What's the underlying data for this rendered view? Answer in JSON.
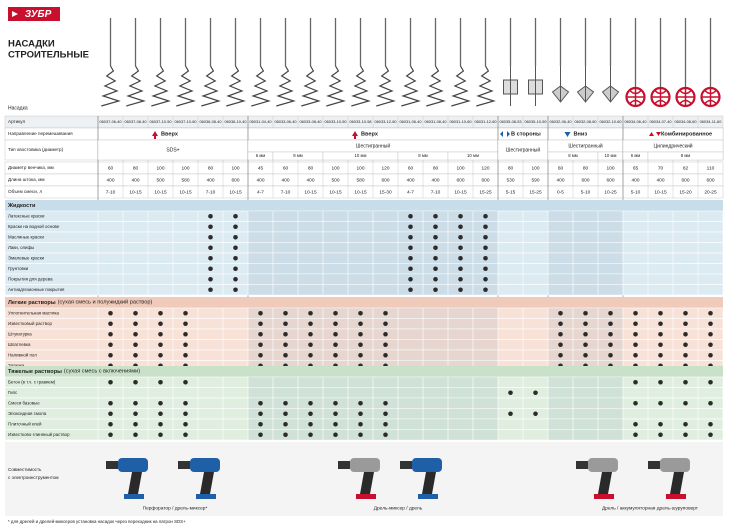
{
  "header": {
    "logo": "ЗУБР",
    "title": [
      "НАСАДКИ",
      "СТРОИТЕЛЬНЫЕ"
    ]
  },
  "labels": {
    "nozzle": "Насадка",
    "article": "Артикул",
    "direction": "Направление перемешивания",
    "shank": "Тип хвостовика (диаметр)",
    "diameter": "Диаметр венчика, мм",
    "length": "Длина штока, мм",
    "volume": "Объем смеси, л"
  },
  "groups": [
    {
      "direction": "Вверх",
      "shank": "SDS+",
      "columns": [
        {
          "article": "06037-06-40",
          "diameter": 60,
          "length": 400,
          "volume": "7-10"
        },
        {
          "article": "06037-08-40",
          "diameter": 80,
          "length": 400,
          "volume": "10-15"
        },
        {
          "article": "06037-10-50",
          "diameter": 100,
          "length": 500,
          "volume": "10-15"
        },
        {
          "article": "06037-10-60",
          "diameter": 100,
          "length": 580,
          "volume": "10-15"
        },
        {
          "article": "06036-08-40",
          "diameter": 80,
          "length": 400,
          "volume": "7-10"
        },
        {
          "article": "06036-10-40",
          "diameter": 100,
          "length": 600,
          "volume": "10-15"
        }
      ]
    },
    {
      "direction": "Вверх",
      "shank": "Шестигранный",
      "columns": [
        {
          "article": "06031-04-40",
          "size": "6 мм",
          "diameter": 45,
          "length": 400,
          "volume": "4-7"
        },
        {
          "article": "06033-06-40",
          "size": "8 мм",
          "diameter": 60,
          "length": 400,
          "volume": "7-10"
        },
        {
          "article": "06033-08-40",
          "size": "8 мм",
          "diameter": 80,
          "length": 400,
          "volume": "10-15"
        },
        {
          "article": "06033-10-50",
          "size": "10 мм",
          "diameter": 100,
          "length": 500,
          "volume": "10-15"
        },
        {
          "article": "06033-10-58",
          "size": "10 мм",
          "diameter": 100,
          "length": 580,
          "volume": "10-15"
        },
        {
          "article": "06033-12-60",
          "size": "10 мм",
          "diameter": 120,
          "length": 600,
          "volume": "15-30"
        },
        {
          "article": "06031-06-40",
          "size": "8 мм",
          "diameter": 60,
          "length": 400,
          "volume": "4-7"
        },
        {
          "article": "06031-08-40",
          "size": "8 мм",
          "diameter": 80,
          "length": 400,
          "volume": "7-10"
        },
        {
          "article": "06031-10-60",
          "size": "10 мм",
          "diameter": 100,
          "length": 600,
          "volume": "10-15"
        },
        {
          "article": "06031-12-60",
          "size": "10 мм",
          "diameter": 120,
          "length": 600,
          "volume": "15-25"
        }
      ]
    },
    {
      "direction": "В стороны",
      "shank": "Шестигранный",
      "columns": [
        {
          "article": "06035-08-53",
          "diameter": 80,
          "length": 530,
          "volume": "5-15"
        },
        {
          "article": "06035-10-59",
          "diameter": 100,
          "length": 590,
          "volume": "15-25"
        }
      ]
    },
    {
      "direction": "Вниз",
      "shank": "Шестигранный",
      "columns": [
        {
          "article": "06032-06-40",
          "size": "8 мм",
          "diameter": 60,
          "length": 400,
          "volume": "0-5"
        },
        {
          "article": "06032-08-60",
          "size": "8 мм",
          "diameter": 80,
          "length": 600,
          "volume": "5-10"
        },
        {
          "article": "06032-10-60",
          "size": "10 мм",
          "diameter": 100,
          "length": 600,
          "volume": "10-25"
        }
      ]
    },
    {
      "direction": "Комбинированное",
      "shank": "Цилиндрический",
      "columns": [
        {
          "article": "06034-06-40",
          "size": "6 мм",
          "diameter": 65,
          "length": 400,
          "volume": "5-10"
        },
        {
          "article": "06034-07-40",
          "size": "8 мм",
          "diameter": 70,
          "length": 400,
          "volume": "10-15"
        },
        {
          "article": "06034-08-60",
          "size": "8 мм",
          "diameter": 82,
          "length": 600,
          "volume": "15-20"
        },
        {
          "article": "06034-11-60",
          "size": "8 мм",
          "diameter": 110,
          "length": 600,
          "volume": "20-25"
        }
      ]
    }
  ],
  "sections": [
    {
      "title": "Жидкости",
      "rows": [
        {
          "label": "Латексные краски",
          "dots": [
            4,
            5,
            12,
            13,
            14,
            15
          ]
        },
        {
          "label": "Краски на водной основе",
          "dots": [
            4,
            5,
            12,
            13,
            14,
            15
          ]
        },
        {
          "label": "Масляные краски",
          "dots": [
            4,
            5,
            12,
            13,
            14,
            15
          ]
        },
        {
          "label": "Лаки, олифы",
          "dots": [
            4,
            5,
            12,
            13,
            14,
            15
          ]
        },
        {
          "label": "Эмалевые краски",
          "dots": [
            4,
            5,
            12,
            13,
            14,
            15
          ]
        },
        {
          "label": "Грунтовки",
          "dots": [
            4,
            5,
            12,
            13,
            14,
            15
          ]
        },
        {
          "label": "Покрытия для дерева",
          "dots": [
            4,
            5,
            12,
            13,
            14,
            15
          ]
        },
        {
          "label": "Антиадгезионные покрытия",
          "dots": [
            4,
            5,
            12,
            13,
            14,
            15
          ]
        }
      ]
    },
    {
      "title": "Легкие растворы",
      "note": "(сухая смесь и полужидкий раствор)",
      "rows": [
        {
          "label": "Уплотнительная мастика",
          "dots": [
            0,
            1,
            2,
            3,
            6,
            7,
            8,
            9,
            10,
            11,
            18,
            19,
            20,
            21,
            22,
            23,
            24
          ]
        },
        {
          "label": "Известковый раствор",
          "dots": [
            0,
            1,
            2,
            3,
            6,
            7,
            8,
            9,
            10,
            11,
            18,
            19,
            20,
            21,
            22,
            23,
            24
          ]
        },
        {
          "label": "Штукатурка",
          "dots": [
            0,
            1,
            2,
            3,
            6,
            7,
            8,
            9,
            10,
            11,
            18,
            19,
            20,
            21,
            22,
            23,
            24
          ]
        },
        {
          "label": "Шпатлевка",
          "dots": [
            0,
            1,
            2,
            3,
            6,
            7,
            8,
            9,
            10,
            11,
            18,
            19,
            20,
            21,
            22,
            23,
            24
          ]
        },
        {
          "label": "Наливной пол",
          "dots": [
            0,
            1,
            2,
            3,
            6,
            7,
            8,
            9,
            10,
            11,
            18,
            19,
            20,
            21,
            22,
            23,
            24
          ]
        },
        {
          "label": "Затирка",
          "dots": [
            0,
            1,
            2,
            3,
            6,
            7,
            8,
            9,
            10,
            11,
            18,
            19,
            20,
            21,
            22,
            23,
            24
          ]
        }
      ]
    },
    {
      "title": "Тяжелые растворы",
      "note": "(сухая смесь с включениями)",
      "rows": [
        {
          "label": "Бетон (в т.ч. с гравием)",
          "dots": [
            0,
            1,
            2,
            3,
            21,
            22,
            23,
            24
          ]
        },
        {
          "label": "Гипс",
          "dots": [
            16,
            17
          ]
        },
        {
          "label": "Смеси базовые",
          "dots": [
            0,
            1,
            2,
            3,
            6,
            7,
            8,
            9,
            10,
            11,
            21,
            22,
            23,
            24
          ]
        },
        {
          "label": "Эпоксидная смола",
          "dots": [
            0,
            1,
            2,
            3,
            6,
            7,
            8,
            9,
            10,
            11,
            16,
            17
          ]
        },
        {
          "label": "Плиточный клей",
          "dots": [
            0,
            1,
            2,
            3,
            6,
            7,
            8,
            9,
            10,
            11,
            21,
            22,
            23,
            24
          ]
        },
        {
          "label": "Известково-глиняный раствор",
          "dots": [
            0,
            1,
            2,
            3,
            6,
            7,
            8,
            9,
            10,
            11,
            21,
            22,
            23,
            24
          ]
        }
      ]
    }
  ],
  "compatibility": {
    "label": [
      "Совместимость",
      "с электроинструментом"
    ],
    "tools": [
      "Перфоратор / дрель-миксер*",
      "Дрель-миксер / дрель",
      "Дрель / аккумуляторная дрель-шуруповерт"
    ]
  },
  "footnote": "* для дрелей и дрелей-миксеров установка насадок через переходник на патрон SDS+"
}
